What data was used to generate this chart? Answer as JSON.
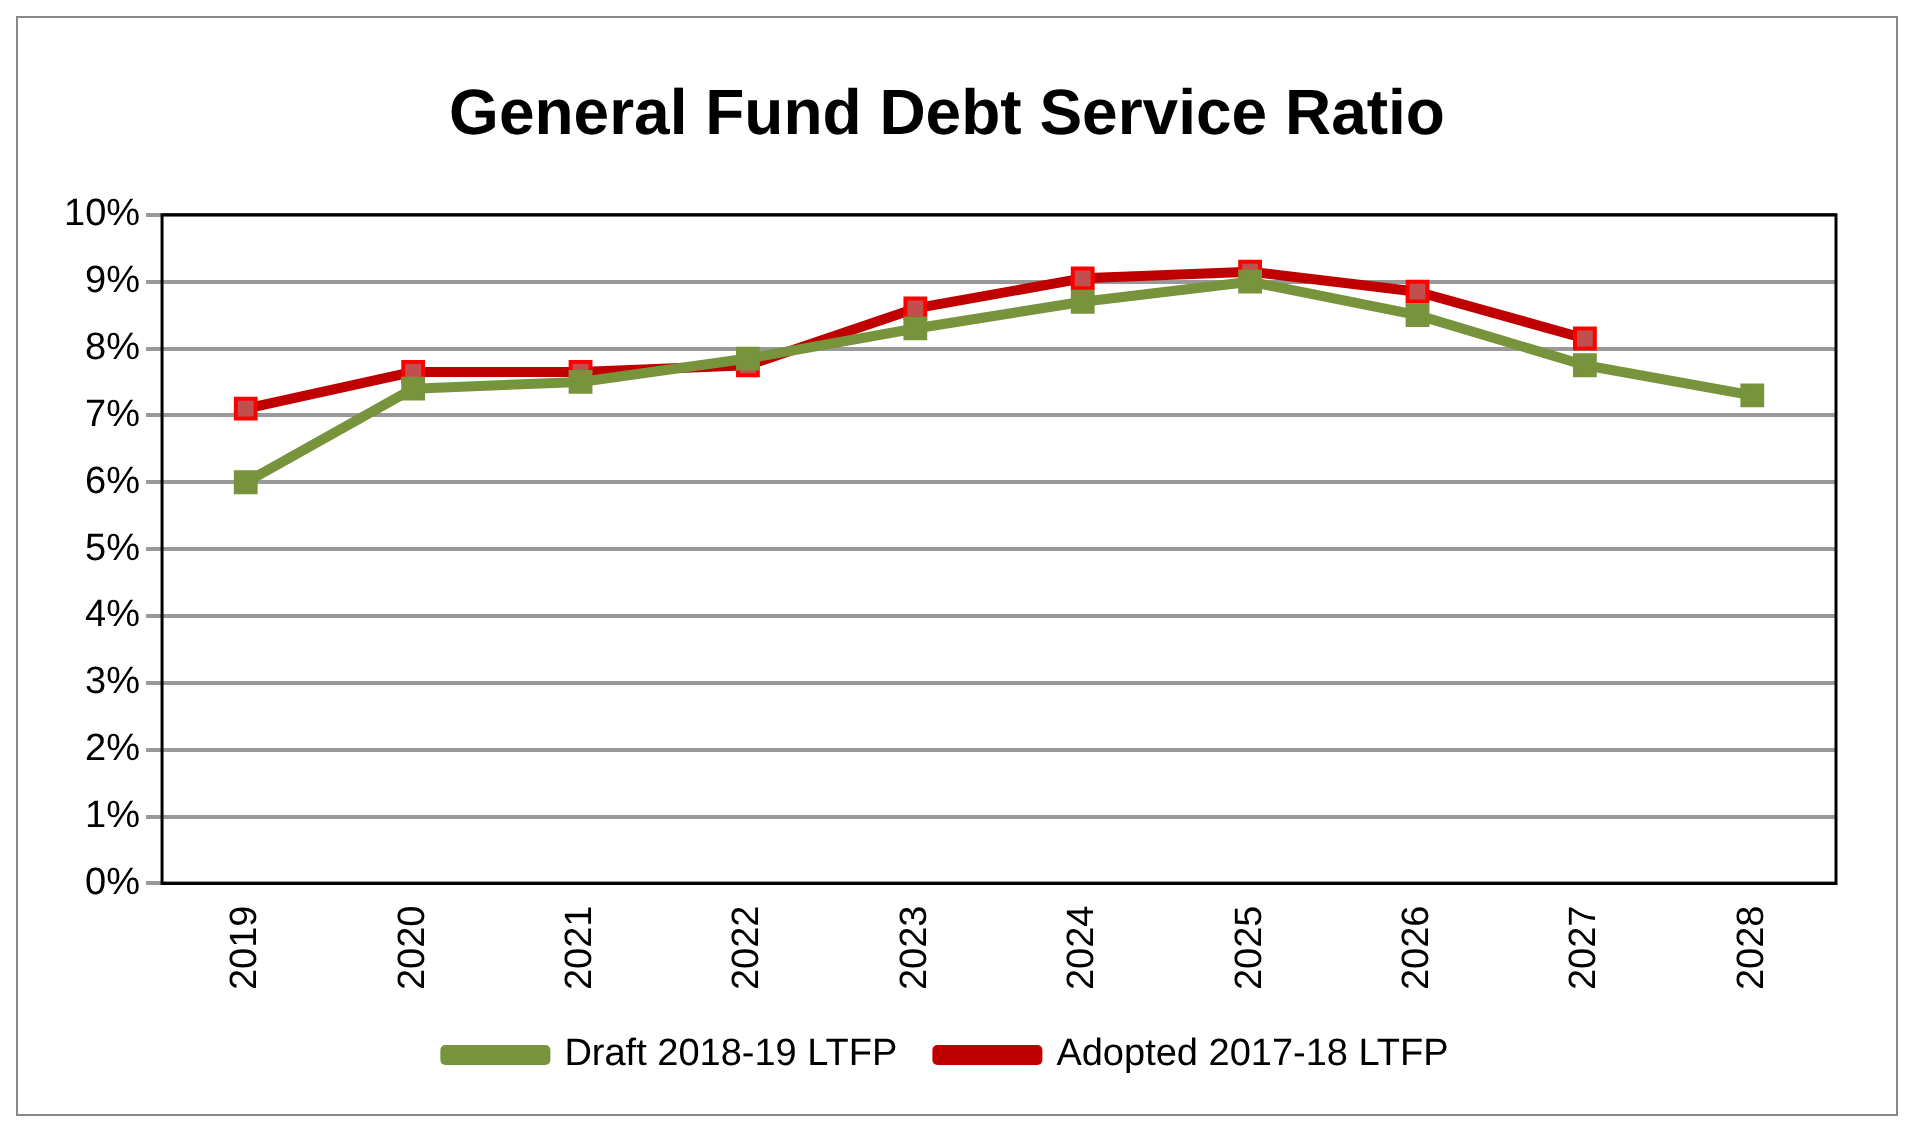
{
  "chart_data": {
    "type": "line",
    "title": "General Fund Debt Service Ratio",
    "categories": [
      "2019",
      "2020",
      "2021",
      "2022",
      "2023",
      "2024",
      "2025",
      "2026",
      "2027",
      "2028"
    ],
    "series": [
      {
        "name": "Draft 2018-19 LTFP",
        "color": "#77933c",
        "values": [
          6.0,
          7.4,
          7.5,
          7.85,
          8.3,
          8.7,
          9.0,
          8.5,
          7.75,
          7.3
        ]
      },
      {
        "name": "Adopted 2017-18 LTFP",
        "color": "#c00000",
        "values": [
          7.1,
          7.65,
          7.65,
          7.75,
          8.6,
          9.05,
          9.15,
          8.85,
          8.15,
          null
        ]
      }
    ],
    "ylim": [
      0,
      10
    ],
    "yticks": [
      {
        "value": 0,
        "label": "0%"
      },
      {
        "value": 1,
        "label": "1%"
      },
      {
        "value": 2,
        "label": "2%"
      },
      {
        "value": 3,
        "label": "3%"
      },
      {
        "value": 4,
        "label": "4%"
      },
      {
        "value": 5,
        "label": "5%"
      },
      {
        "value": 6,
        "label": "6%"
      },
      {
        "value": 7,
        "label": "7%"
      },
      {
        "value": 8,
        "label": "8%"
      },
      {
        "value": 9,
        "label": "9%"
      },
      {
        "value": 10,
        "label": "10%"
      }
    ],
    "grid": "y",
    "legend": "bottom",
    "marker": "square",
    "line_style": "solid"
  }
}
